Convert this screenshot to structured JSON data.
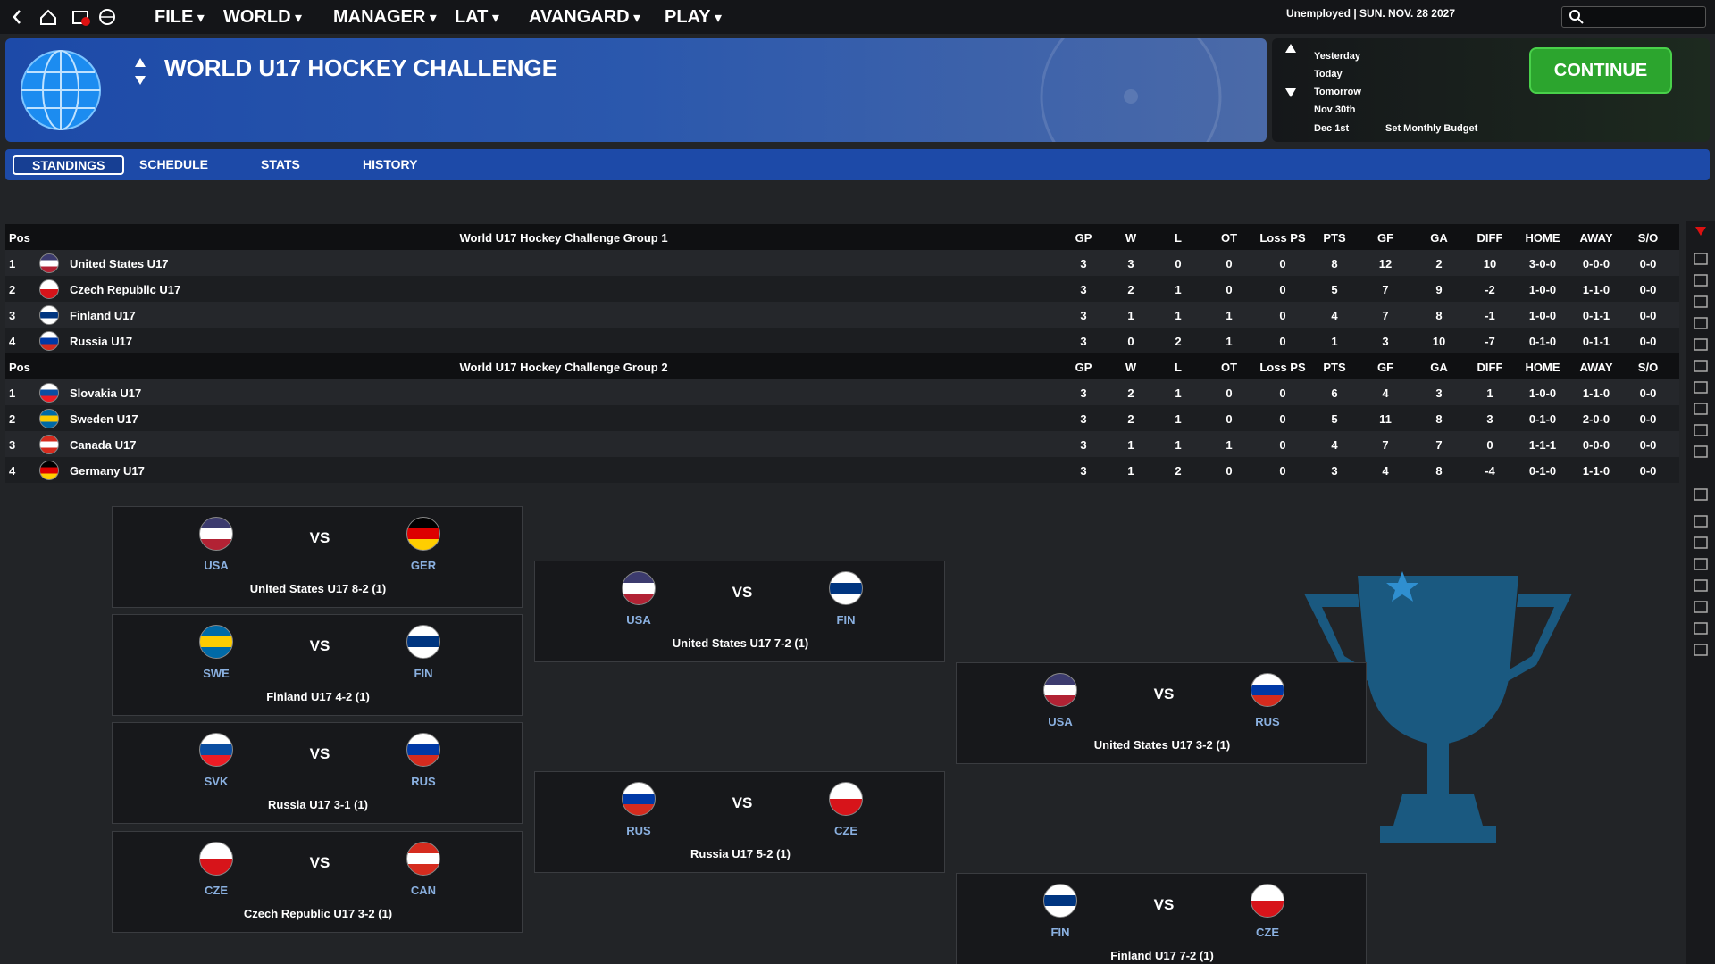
{
  "top_bar": {
    "menu": [
      "FILE",
      "WORLD",
      "MANAGER",
      "LAT",
      "AVANGARD",
      "PLAY"
    ],
    "status": "Unemployed | SUN. NOV. 28 2027"
  },
  "header": {
    "title": "WORLD U17 HOCKEY CHALLENGE"
  },
  "calendar": {
    "days": [
      "Yesterday",
      "Today",
      "Tomorrow",
      "Nov 30th",
      "Dec 1st"
    ],
    "budget_link": "Set Monthly Budget",
    "continue_button": "CONTINUE"
  },
  "tabs": [
    "STANDINGS",
    "SCHEDULE",
    "STATS",
    "HISTORY"
  ],
  "standings": {
    "pos_label": "Pos",
    "stat_columns": [
      "GP",
      "W",
      "L",
      "OT",
      "Loss PS",
      "PTS",
      "GF",
      "GA",
      "DIFF",
      "HOME",
      "AWAY",
      "S/O"
    ],
    "groups": [
      {
        "title": "World U17 Hockey Challenge Group 1",
        "rows": [
          {
            "pos": 1,
            "team": "United States U17",
            "flag_colors": [
              "#3c3b6e",
              "#ffffff",
              "#b22234"
            ],
            "stats": [
              3,
              3,
              0,
              0,
              0,
              8,
              12,
              2,
              10,
              "3-0-0",
              "0-0-0",
              "0-0"
            ]
          },
          {
            "pos": 2,
            "team": "Czech Republic U17",
            "flag_colors": [
              "#ffffff",
              "#d7141a"
            ],
            "stats": [
              3,
              2,
              1,
              0,
              0,
              5,
              7,
              9,
              -2,
              "1-0-0",
              "1-1-0",
              "0-0"
            ]
          },
          {
            "pos": 3,
            "team": "Finland U17",
            "flag_colors": [
              "#ffffff",
              "#003580",
              "#ffffff"
            ],
            "stats": [
              3,
              1,
              1,
              1,
              0,
              4,
              7,
              8,
              -1,
              "1-0-0",
              "0-1-1",
              "0-0"
            ]
          },
          {
            "pos": 4,
            "team": "Russia U17",
            "flag_colors": [
              "#ffffff",
              "#0039a6",
              "#d52b1e"
            ],
            "stats": [
              3,
              0,
              2,
              1,
              0,
              1,
              3,
              10,
              -7,
              "0-1-0",
              "0-1-1",
              "0-0"
            ]
          }
        ]
      },
      {
        "title": "World U17 Hockey Challenge Group 2",
        "rows": [
          {
            "pos": 1,
            "team": "Slovakia U17",
            "flag_colors": [
              "#ffffff",
              "#0b4ea2",
              "#ee1c25"
            ],
            "stats": [
              3,
              2,
              1,
              0,
              0,
              6,
              4,
              3,
              1,
              "1-0-0",
              "1-1-0",
              "0-0"
            ]
          },
          {
            "pos": 2,
            "team": "Sweden U17",
            "flag_colors": [
              "#006aa7",
              "#fecc00",
              "#006aa7"
            ],
            "stats": [
              3,
              2,
              1,
              0,
              0,
              5,
              11,
              8,
              3,
              "0-1-0",
              "2-0-0",
              "0-0"
            ]
          },
          {
            "pos": 3,
            "team": "Canada U17",
            "flag_colors": [
              "#d52b1e",
              "#ffffff",
              "#d52b1e"
            ],
            "stats": [
              3,
              1,
              1,
              1,
              0,
              4,
              7,
              7,
              0,
              "1-1-1",
              "0-0-0",
              "0-0"
            ]
          },
          {
            "pos": 4,
            "team": "Germany U17",
            "flag_colors": [
              "#000000",
              "#dd0000",
              "#ffce00"
            ],
            "stats": [
              3,
              1,
              2,
              0,
              0,
              3,
              4,
              8,
              -4,
              "0-1-0",
              "1-1-0",
              "0-0"
            ]
          }
        ]
      }
    ]
  },
  "bracket": {
    "vs_label": "VS",
    "rounds": [
      [
        {
          "home": {
            "code": "USA",
            "flag_colors": [
              "#3c3b6e",
              "#ffffff",
              "#b22234"
            ]
          },
          "away": {
            "code": "GER",
            "flag_colors": [
              "#000000",
              "#dd0000",
              "#ffce00"
            ]
          },
          "result": "United States U17 8-2 (1)"
        },
        {
          "home": {
            "code": "SWE",
            "flag_colors": [
              "#006aa7",
              "#fecc00",
              "#006aa7"
            ]
          },
          "away": {
            "code": "FIN",
            "flag_colors": [
              "#ffffff",
              "#003580",
              "#ffffff"
            ]
          },
          "result": "Finland U17 4-2 (1)"
        },
        {
          "home": {
            "code": "SVK",
            "flag_colors": [
              "#ffffff",
              "#0b4ea2",
              "#ee1c25"
            ]
          },
          "away": {
            "code": "RUS",
            "flag_colors": [
              "#ffffff",
              "#0039a6",
              "#d52b1e"
            ]
          },
          "result": "Russia U17 3-1 (1)"
        },
        {
          "home": {
            "code": "CZE",
            "flag_colors": [
              "#ffffff",
              "#d7141a"
            ]
          },
          "away": {
            "code": "CAN",
            "flag_colors": [
              "#d52b1e",
              "#ffffff",
              "#d52b1e"
            ]
          },
          "result": "Czech Republic U17 3-2 (1)"
        }
      ],
      [
        {
          "home": {
            "code": "USA",
            "flag_colors": [
              "#3c3b6e",
              "#ffffff",
              "#b22234"
            ]
          },
          "away": {
            "code": "FIN",
            "flag_colors": [
              "#ffffff",
              "#003580",
              "#ffffff"
            ]
          },
          "result": "United States U17 7-2 (1)"
        },
        {
          "home": {
            "code": "RUS",
            "flag_colors": [
              "#ffffff",
              "#0039a6",
              "#d52b1e"
            ]
          },
          "away": {
            "code": "CZE",
            "flag_colors": [
              "#ffffff",
              "#d7141a"
            ]
          },
          "result": "Russia U17 5-2 (1)"
        }
      ],
      [
        {
          "home": {
            "code": "USA",
            "flag_colors": [
              "#3c3b6e",
              "#ffffff",
              "#b22234"
            ]
          },
          "away": {
            "code": "RUS",
            "flag_colors": [
              "#ffffff",
              "#0039a6",
              "#d52b1e"
            ]
          },
          "result": "United States U17 3-2 (1)"
        },
        {
          "home": {
            "code": "FIN",
            "flag_colors": [
              "#ffffff",
              "#003580",
              "#ffffff"
            ]
          },
          "away": {
            "code": "CZE",
            "flag_colors": [
              "#ffffff",
              "#d7141a"
            ]
          },
          "result": "Finland U17 7-2 (1)"
        }
      ]
    ]
  }
}
